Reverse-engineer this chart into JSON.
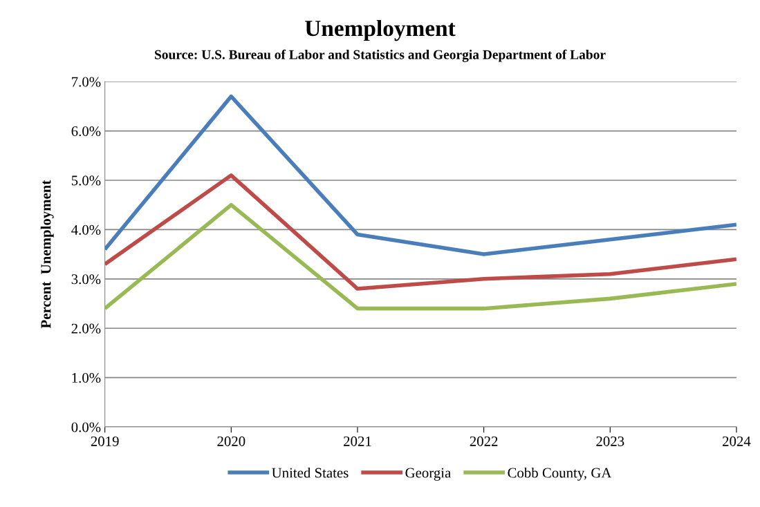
{
  "chart_data": {
    "type": "line",
    "title": "Unemployment",
    "subtitle": "Source: U.S. Bureau of Labor and Statistics and Georgia Department of Labor",
    "ylabel": "Percent  Unemployment",
    "x": [
      2019,
      2020,
      2021,
      2022,
      2023,
      2024
    ],
    "series": [
      {
        "name": "United States",
        "color": "#4a7ebb",
        "values": [
          3.6,
          6.7,
          3.9,
          3.5,
          3.8,
          4.1
        ]
      },
      {
        "name": "Georgia",
        "color": "#be4b48",
        "values": [
          3.3,
          5.1,
          2.8,
          3.0,
          3.1,
          3.4
        ]
      },
      {
        "name": "Cobb County, GA",
        "color": "#98b954",
        "values": [
          2.4,
          4.5,
          2.4,
          2.4,
          2.6,
          2.9
        ]
      }
    ],
    "xlim": [
      2019,
      2024
    ],
    "xticks": [
      2019,
      2020,
      2021,
      2022,
      2023,
      2024
    ],
    "ylim": [
      0,
      7
    ],
    "yticks": [
      {
        "value": 0,
        "label": "0.0%"
      },
      {
        "value": 1,
        "label": "1.0%"
      },
      {
        "value": 2,
        "label": "2.0%"
      },
      {
        "value": 3,
        "label": "3.0%"
      },
      {
        "value": 4,
        "label": "4.0%"
      },
      {
        "value": 5,
        "label": "5.0%"
      },
      {
        "value": 6,
        "label": "6.0%"
      },
      {
        "value": 7,
        "label": "7.0%"
      }
    ],
    "grid": "y",
    "legend": "bottom",
    "marker": "none",
    "line_style": "solid"
  }
}
